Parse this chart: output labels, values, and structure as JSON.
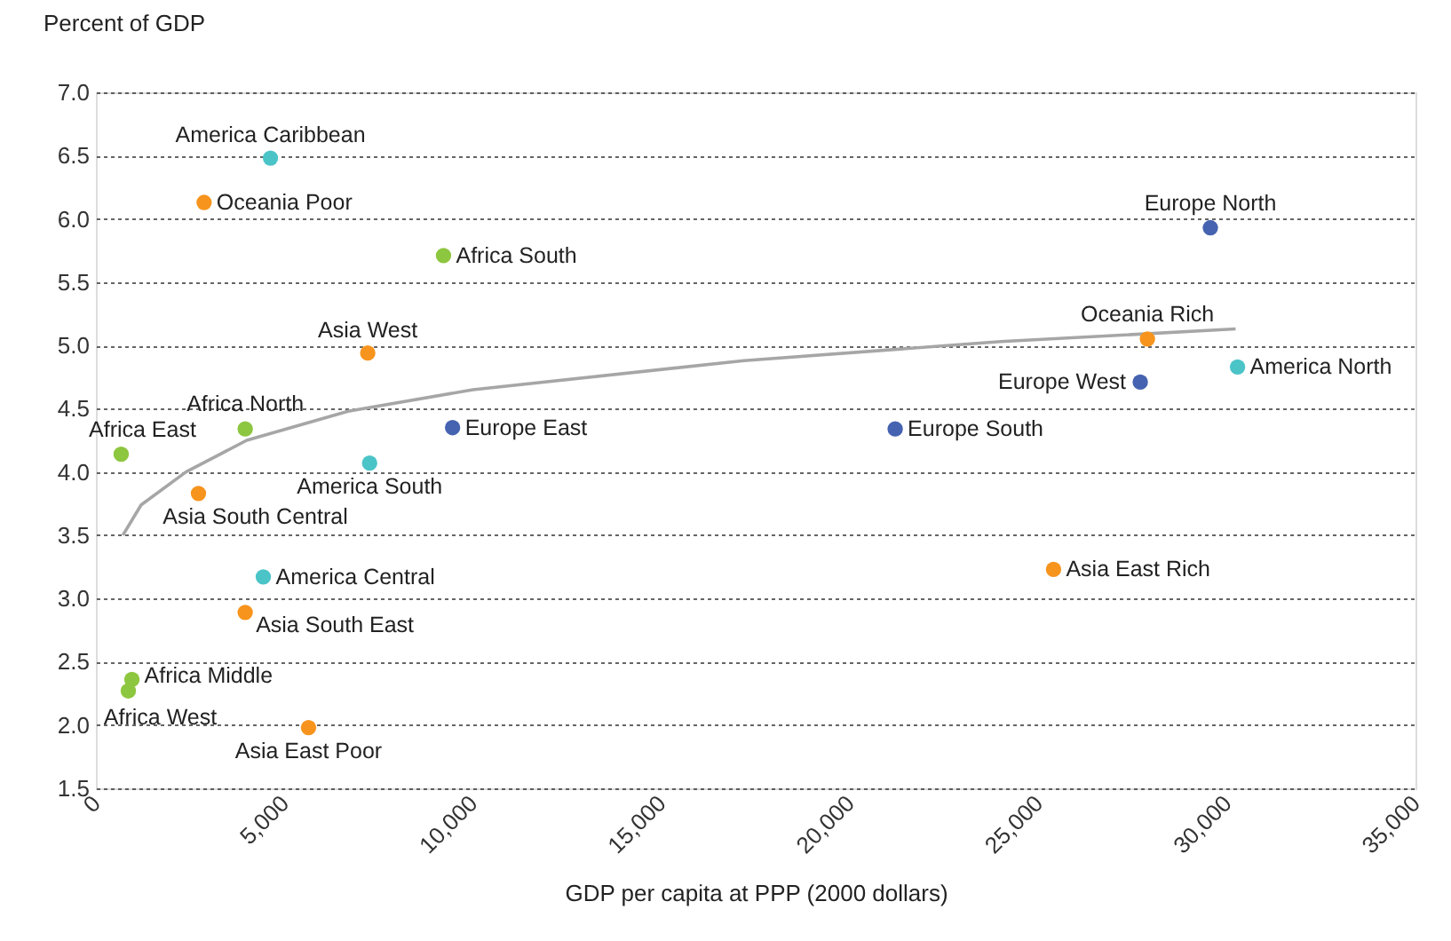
{
  "chart_data": {
    "type": "scatter",
    "ylabel": "Percent of GDP",
    "xlabel": "GDP per capita at PPP (2000 dollars)",
    "xlim": [
      0,
      35000
    ],
    "xticks": [
      {
        "value": 0,
        "label": "0"
      },
      {
        "value": 5000,
        "label": "5,000"
      },
      {
        "value": 10000,
        "label": "10,000"
      },
      {
        "value": 15000,
        "label": "15,000"
      },
      {
        "value": 20000,
        "label": "20,000"
      },
      {
        "value": 25000,
        "label": "25,000"
      },
      {
        "value": 30000,
        "label": "30,000"
      },
      {
        "value": 35000,
        "label": "35,000"
      }
    ],
    "ylim": [
      1.5,
      7.0
    ],
    "yticks": [
      {
        "value": 1.5,
        "label": "1.5"
      },
      {
        "value": 2.0,
        "label": "2.0"
      },
      {
        "value": 2.5,
        "label": "2.5"
      },
      {
        "value": 3.0,
        "label": "3.0"
      },
      {
        "value": 3.5,
        "label": "3.5"
      },
      {
        "value": 4.0,
        "label": "4.0"
      },
      {
        "value": 4.5,
        "label": "4.5"
      },
      {
        "value": 5.0,
        "label": "5.0"
      },
      {
        "value": 5.5,
        "label": "5.5"
      },
      {
        "value": 6.0,
        "label": "6.0"
      },
      {
        "value": 6.5,
        "label": "6.5"
      },
      {
        "value": 7.0,
        "label": "7.0"
      }
    ],
    "grid": "y",
    "marker": "circle",
    "series": [
      {
        "color": "#8dc63f",
        "x": [
          9220,
          3960,
          670,
          955,
          860
        ],
        "values": [
          5.71,
          4.34,
          4.14,
          2.36,
          2.27
        ]
      },
      {
        "color": "#f7941d",
        "x": [
          2870,
          7210,
          2720,
          3960,
          5640,
          27890,
          25400
        ],
        "values": [
          6.13,
          4.94,
          3.83,
          2.89,
          1.98,
          5.05,
          3.23
        ]
      },
      {
        "color": "#4bc4c8",
        "x": [
          4630,
          7260,
          4440,
          30280
        ],
        "values": [
          6.48,
          4.07,
          3.17,
          4.83
        ]
      },
      {
        "color": "#4563b0",
        "x": [
          9460,
          29560,
          27700,
          21200
        ],
        "values": [
          4.35,
          5.93,
          4.71,
          4.34
        ]
      },
      {
        "type": "line",
        "marker": "none",
        "line_style": "solid",
        "color": "#a6a6a6",
        "x": [
          715,
          1200,
          2390,
          4000,
          6690,
          10000,
          17190,
          24000,
          30230
        ],
        "values": [
          3.5,
          3.74,
          4.0,
          4.25,
          4.48,
          4.65,
          4.88,
          5.03,
          5.13
        ]
      }
    ],
    "annotations": [
      {
        "text": "America Caribbean",
        "x": 4630,
        "y": 6.48
      },
      {
        "text": "Oceania Poor",
        "x": 2870,
        "y": 6.13
      },
      {
        "text": "Africa South",
        "x": 9220,
        "y": 5.71
      },
      {
        "text": "Asia West",
        "x": 7210,
        "y": 4.94
      },
      {
        "text": "Africa North",
        "x": 3960,
        "y": 4.34
      },
      {
        "text": "Africa East",
        "x": 670,
        "y": 4.14
      },
      {
        "text": "Europe East",
        "x": 9460,
        "y": 4.35
      },
      {
        "text": "America South",
        "x": 7260,
        "y": 4.07
      },
      {
        "text": "Asia South Central",
        "x": 2720,
        "y": 3.83
      },
      {
        "text": "America Central",
        "x": 4440,
        "y": 3.17
      },
      {
        "text": "Asia South East",
        "x": 3960,
        "y": 2.89
      },
      {
        "text": "Africa Middle",
        "x": 955,
        "y": 2.36
      },
      {
        "text": "Africa West",
        "x": 860,
        "y": 2.27
      },
      {
        "text": "Asia East Poor",
        "x": 5640,
        "y": 1.98
      },
      {
        "text": "Europe North",
        "x": 29560,
        "y": 5.93
      },
      {
        "text": "Oceania Rich",
        "x": 27890,
        "y": 5.05
      },
      {
        "text": "Europe West",
        "x": 27700,
        "y": 4.71
      },
      {
        "text": "America North",
        "x": 30280,
        "y": 4.83
      },
      {
        "text": "Europe South",
        "x": 21200,
        "y": 4.34
      },
      {
        "text": "Asia East Rich",
        "x": 25400,
        "y": 3.23
      }
    ]
  }
}
